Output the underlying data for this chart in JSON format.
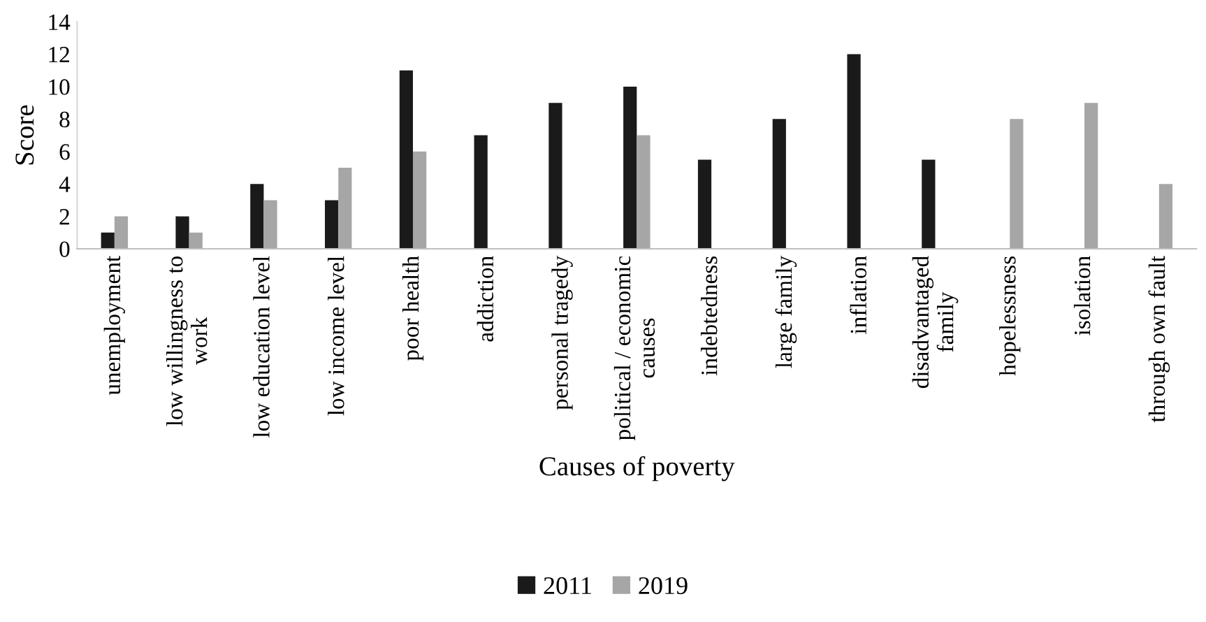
{
  "chart_data": {
    "type": "bar",
    "xlabel": "Causes of poverty",
    "ylabel": "Score",
    "categories": [
      "unemployment",
      "low willingness to\nwork",
      "low education level",
      "low income level",
      "poor health",
      "addiction",
      "personal tragedy",
      "political / economic\ncauses",
      "indebtedness",
      "large family",
      "inflation",
      "disadvantaged\nfamily",
      "hopelessness",
      "isolation",
      "through own fault"
    ],
    "series": [
      {
        "name": "2011",
        "color": "#1a1a1a",
        "values": [
          1,
          2,
          4,
          3,
          11,
          7,
          9,
          10,
          5.5,
          8,
          12,
          5.5,
          null,
          null,
          null
        ]
      },
      {
        "name": "2019",
        "color": "#a6a6a6",
        "values": [
          2,
          1,
          3,
          5,
          6,
          null,
          null,
          7,
          null,
          null,
          null,
          null,
          8,
          9,
          4
        ]
      }
    ],
    "ylim": [
      0,
      14
    ],
    "yticks": [
      0,
      2,
      4,
      6,
      8,
      10,
      12,
      14
    ],
    "grid": false,
    "legend": "bottom"
  }
}
